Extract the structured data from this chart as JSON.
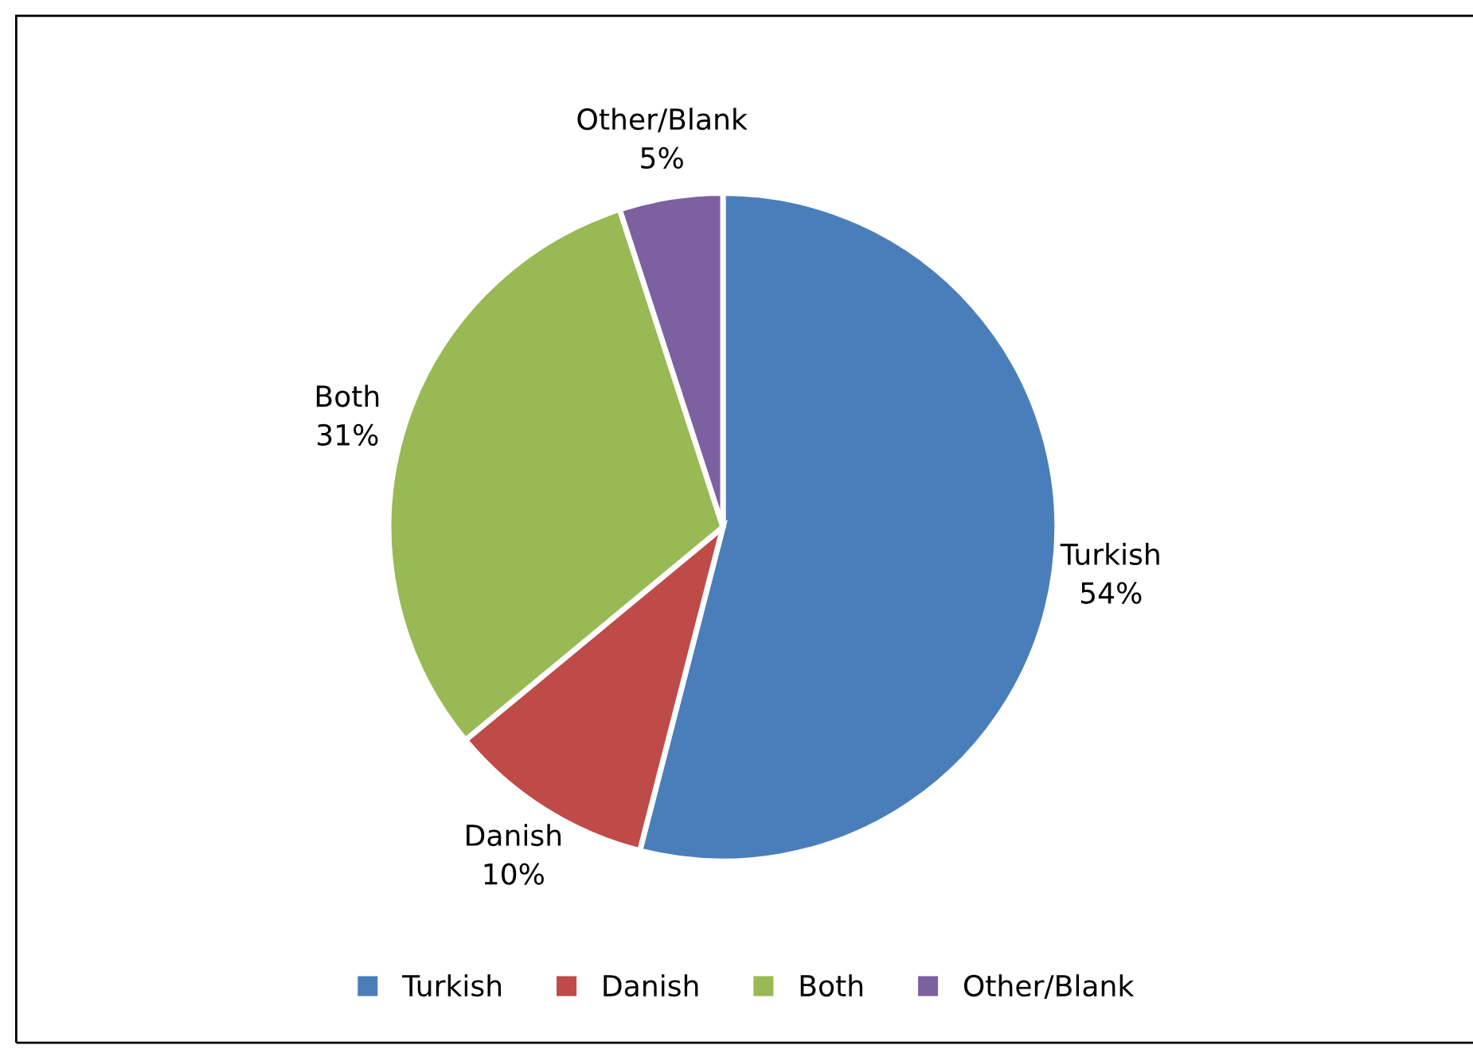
{
  "chart_data": {
    "type": "pie",
    "categories": [
      "Turkish",
      "Danish",
      "Both",
      "Other/Blank"
    ],
    "values": [
      54,
      10,
      31,
      5
    ],
    "value_labels": [
      "54%",
      "10%",
      "31%",
      "5%"
    ],
    "colors": [
      "#4a7ebb",
      "#be4b48",
      "#98b954",
      "#7d60a0"
    ],
    "legend": "bottom"
  }
}
